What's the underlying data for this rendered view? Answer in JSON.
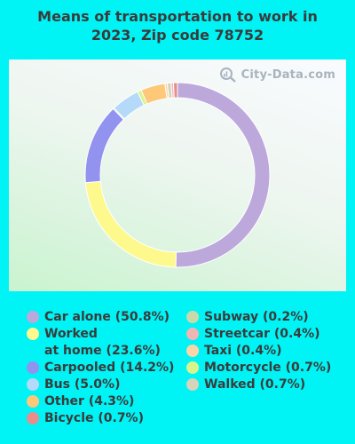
{
  "chart_data": {
    "type": "pie",
    "title": "Means of transportation to work in 2023, Zip code 78752",
    "title_lines": [
      "Means of transportation to work in",
      "2023, Zip code 78752"
    ],
    "watermark": "City-Data.com",
    "slices": [
      {
        "label": "Car alone",
        "value": 50.8,
        "legend_text": "Car alone (50.8%)",
        "color": "#bda8dc"
      },
      {
        "label": "Worked at home",
        "value": 23.6,
        "legend_lines": [
          "Worked",
          "at home (23.6%)"
        ],
        "color": "#fef98d"
      },
      {
        "label": "Carpooled",
        "value": 14.2,
        "legend_text": "Carpooled (14.2%)",
        "color": "#9292ef"
      },
      {
        "label": "Subway",
        "value": 0.2,
        "legend_text": "Subway (0.2%)",
        "color": "#c9d9aa"
      },
      {
        "label": "Bus",
        "value": 5.0,
        "legend_text": "Bus (5.0%)",
        "color": "#b5daf9"
      },
      {
        "label": "Motorcycle",
        "value": 0.7,
        "legend_text": "Motorcycle (0.7%)",
        "color": "#d7f48c"
      },
      {
        "label": "Other",
        "value": 4.3,
        "legend_text": "Other (4.3%)",
        "color": "#fdc878"
      },
      {
        "label": "Taxi",
        "value": 0.4,
        "legend_text": "Taxi (0.4%)",
        "color": "#fad5a7"
      },
      {
        "label": "Walked",
        "value": 0.7,
        "legend_text": "Walked (0.7%)",
        "color": "#d8d3bb"
      },
      {
        "label": "Streetcar",
        "value": 0.4,
        "legend_text": "Streetcar (0.4%)",
        "color": "#f0b5b5"
      },
      {
        "label": "Bicycle",
        "value": 0.7,
        "legend_text": "Bicycle (0.7%)",
        "color": "#e88c8c"
      }
    ],
    "legend_left": [
      {
        "text": "Car alone (50.8%)",
        "color": "#bda8dc"
      },
      {
        "lines": [
          "Worked",
          "at home (23.6%)"
        ],
        "color": "#fef98d"
      },
      {
        "text": "Carpooled (14.2%)",
        "color": "#9292ef"
      },
      {
        "text": "Bus (5.0%)",
        "color": "#b5daf9"
      },
      {
        "text": "Other (4.3%)",
        "color": "#fdc878"
      },
      {
        "text": "Bicycle (0.7%)",
        "color": "#e88c8c"
      }
    ],
    "legend_right": [
      {
        "text": "Subway (0.2%)",
        "color": "#c9d9aa"
      },
      {
        "text": "Streetcar (0.4%)",
        "color": "#f0b5b5"
      },
      {
        "text": "Taxi (0.4%)",
        "color": "#fad5a7"
      },
      {
        "text": "Motorcycle (0.7%)",
        "color": "#d7f48c"
      },
      {
        "text": "Walked (0.7%)",
        "color": "#d8d3bb"
      }
    ]
  },
  "colors": {
    "background": "#00f3f5",
    "text": "#3b3b3b"
  }
}
